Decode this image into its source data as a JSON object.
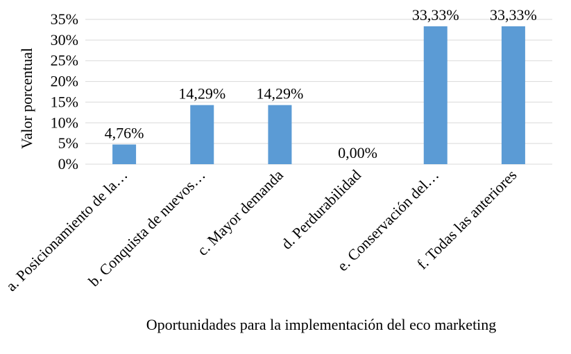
{
  "chart_data": {
    "type": "bar",
    "title": "",
    "xlabel": "Oportunidades para la implementación del eco marketing",
    "ylabel": "Valor porcentual",
    "ylim": [
      0,
      35
    ],
    "yticks": [
      "0%",
      "5%",
      "10%",
      "15%",
      "20%",
      "25%",
      "30%",
      "35%"
    ],
    "grid": true,
    "legend": "none",
    "bar_color": "#5b9bd5",
    "categories": [
      "a. Posicionamiento de la…",
      "b. Conquista de nuevos…",
      "c. Mayor demanda",
      "d. Perdurabilidad",
      "e. Conservación del…",
      "f. Todas las anteriores"
    ],
    "values": [
      4.76,
      14.29,
      14.29,
      0.0,
      33.33,
      33.33
    ],
    "data_labels": [
      "4,76%",
      "14,29%",
      "14,29%",
      "0,00%",
      "33,33%",
      "33,33%"
    ]
  }
}
